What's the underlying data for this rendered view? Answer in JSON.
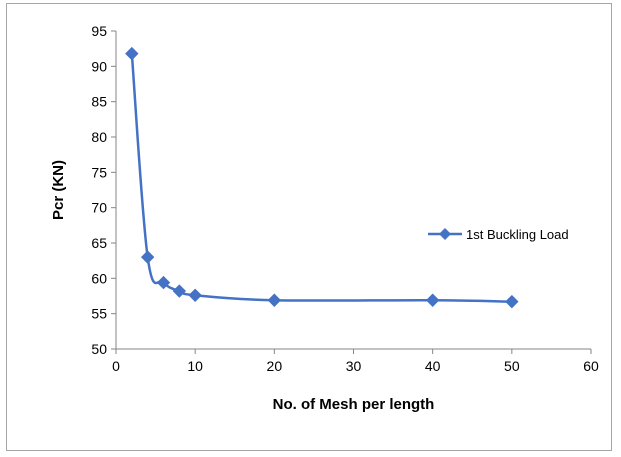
{
  "chart_data": {
    "type": "line",
    "title": "",
    "xlabel": "No. of Mesh per length",
    "ylabel": "Pcr (KN)",
    "xlim": [
      0,
      60
    ],
    "ylim": [
      50,
      95
    ],
    "xticks": [
      0,
      10,
      20,
      30,
      40,
      50,
      60
    ],
    "yticks": [
      50,
      55,
      60,
      65,
      70,
      75,
      80,
      85,
      90,
      95
    ],
    "grid": false,
    "legend_position": "right",
    "series": [
      {
        "name": "1st Buckling Load",
        "color": "#4472c4",
        "marker": "diamond",
        "smooth": true,
        "x": [
          2,
          4,
          6,
          8,
          10,
          20,
          40,
          50
        ],
        "y": [
          91.8,
          63,
          59.4,
          58.2,
          57.6,
          56.9,
          56.9,
          56.7
        ]
      }
    ]
  }
}
